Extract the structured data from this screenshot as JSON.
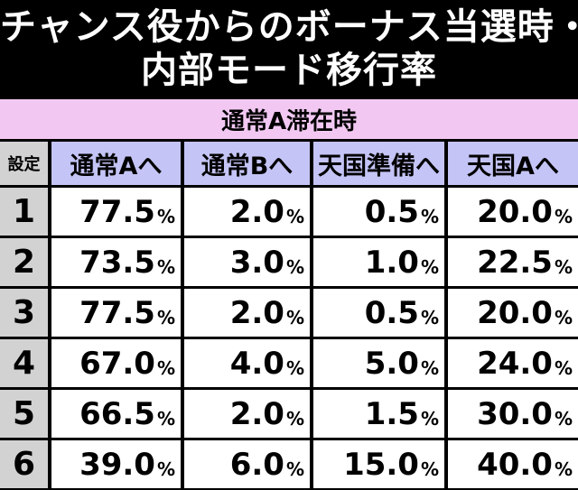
{
  "title": {
    "line1": "チャンス役からのボーナス当選時・",
    "line2": "内部モード移行率"
  },
  "section_label": "通常A滞在時",
  "headers": {
    "setting": "設定",
    "columns": [
      "通常Aへ",
      "通常Bへ",
      "天国準備へ",
      "天国Aへ"
    ]
  },
  "percent_sign": "%",
  "rows": [
    {
      "setting": "1",
      "values": [
        "77.5",
        "2.0",
        "0.5",
        "20.0"
      ]
    },
    {
      "setting": "2",
      "values": [
        "73.5",
        "3.0",
        "1.0",
        "22.5"
      ]
    },
    {
      "setting": "3",
      "values": [
        "77.5",
        "2.0",
        "0.5",
        "20.0"
      ]
    },
    {
      "setting": "4",
      "values": [
        "67.0",
        "4.0",
        "5.0",
        "24.0"
      ]
    },
    {
      "setting": "5",
      "values": [
        "66.5",
        "2.0",
        "1.5",
        "30.0"
      ]
    },
    {
      "setting": "6",
      "values": [
        "39.0",
        "6.0",
        "15.0",
        "40.0"
      ]
    }
  ],
  "colors": {
    "background": "#000000",
    "title_text": "#ffffff",
    "section_band": "#f2c8f2",
    "column_header": "#c4c4f6",
    "setting_column": "#d2d2d2",
    "value_cell": "#ffffff"
  }
}
